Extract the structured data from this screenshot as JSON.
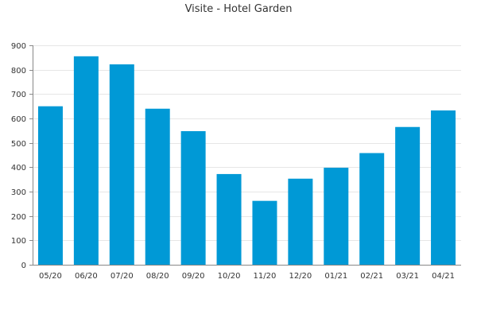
{
  "chart_data": {
    "type": "bar",
    "title": "Visite - Hotel Garden",
    "xlabel": "",
    "ylabel": "",
    "categories": [
      "05/20",
      "06/20",
      "07/20",
      "08/20",
      "09/20",
      "10/20",
      "11/20",
      "12/20",
      "01/21",
      "02/21",
      "03/21",
      "04/21"
    ],
    "values": [
      650,
      855,
      822,
      640,
      548,
      372,
      262,
      353,
      398,
      458,
      565,
      633
    ],
    "ylim": [
      0,
      900
    ],
    "yticks": [
      0,
      100,
      200,
      300,
      400,
      500,
      600,
      700,
      800,
      900
    ],
    "grid": true,
    "legend": "none",
    "bar_color": "#0099d6"
  }
}
